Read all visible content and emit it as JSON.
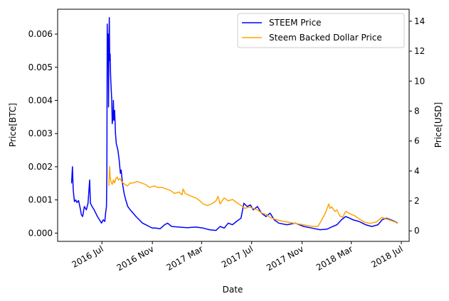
{
  "chart_data": {
    "type": "line",
    "title": "",
    "xlabel": "Date",
    "ylabel_left": "Price[BTC]",
    "ylabel_right": "Price[USD]",
    "x_ticks": [
      "2016 Jul",
      "2016 Nov",
      "2017 Mar",
      "2017 Jul",
      "2017 Nov",
      "2018 Mar",
      "2018 Jul"
    ],
    "y_left_ticks": [
      "0.000",
      "0.001",
      "0.002",
      "0.003",
      "0.004",
      "0.005",
      "0.006"
    ],
    "y_right_ticks": [
      "0",
      "2",
      "4",
      "6",
      "8",
      "10",
      "12",
      "14"
    ],
    "ylim_left": [
      -0.00025,
      0.00675
    ],
    "ylim_right": [
      -0.7,
      14.8
    ],
    "xlim": [
      "2016-03-15",
      "2018-07-20"
    ],
    "legend_position": "upper right",
    "grid": false,
    "series": [
      {
        "name": "STEEM Price",
        "axis": "left",
        "color": "#0000ff",
        "points": [
          [
            "2016-04-18",
            0.0015
          ],
          [
            "2016-04-20",
            0.002
          ],
          [
            "2016-04-22",
            0.0013
          ],
          [
            "2016-04-25",
            0.00095
          ],
          [
            "2016-04-28",
            0.001
          ],
          [
            "2016-05-01",
            0.00092
          ],
          [
            "2016-05-05",
            0.00098
          ],
          [
            "2016-05-09",
            0.00075
          ],
          [
            "2016-05-12",
            0.00055
          ],
          [
            "2016-05-15",
            0.0005
          ],
          [
            "2016-05-19",
            0.0008
          ],
          [
            "2016-05-24",
            0.0007
          ],
          [
            "2016-05-28",
            0.0009
          ],
          [
            "2016-06-01",
            0.0016
          ],
          [
            "2016-06-03",
            0.0009
          ],
          [
            "2016-06-07",
            0.0008
          ],
          [
            "2016-06-12",
            0.0007
          ],
          [
            "2016-06-16",
            0.0006
          ],
          [
            "2016-06-20",
            0.0005
          ],
          [
            "2016-06-25",
            0.0004
          ],
          [
            "2016-06-30",
            0.0003
          ],
          [
            "2016-07-04",
            0.0004
          ],
          [
            "2016-07-08",
            0.00035
          ],
          [
            "2016-07-10",
            0.0006
          ],
          [
            "2016-07-12",
            0.0008
          ],
          [
            "2016-07-13",
            0.0018
          ],
          [
            "2016-07-14",
            0.0063
          ],
          [
            "2016-07-15",
            0.0051
          ],
          [
            "2016-07-16",
            0.006
          ],
          [
            "2016-07-17",
            0.0038
          ],
          [
            "2016-07-18",
            0.0055
          ],
          [
            "2016-07-19",
            0.0065
          ],
          [
            "2016-07-20",
            0.0052
          ],
          [
            "2016-07-21",
            0.0054
          ],
          [
            "2016-07-22",
            0.0048
          ],
          [
            "2016-07-23",
            0.0045
          ],
          [
            "2016-07-25",
            0.004
          ],
          [
            "2016-07-26",
            0.0033
          ],
          [
            "2016-07-28",
            0.0035
          ],
          [
            "2016-07-29",
            0.004
          ],
          [
            "2016-07-30",
            0.0034
          ],
          [
            "2016-08-01",
            0.0037
          ],
          [
            "2016-08-03",
            0.003
          ],
          [
            "2016-08-05",
            0.0027
          ],
          [
            "2016-08-07",
            0.0026
          ],
          [
            "2016-08-09",
            0.0025
          ],
          [
            "2016-08-12",
            0.0022
          ],
          [
            "2016-08-15",
            0.0018
          ],
          [
            "2016-08-17",
            0.0019
          ],
          [
            "2016-08-20",
            0.0015
          ],
          [
            "2016-08-24",
            0.0012
          ],
          [
            "2016-08-28",
            0.001
          ],
          [
            "2016-09-02",
            0.0008
          ],
          [
            "2016-09-08",
            0.0007
          ],
          [
            "2016-09-15",
            0.0006
          ],
          [
            "2016-09-22",
            0.0005
          ],
          [
            "2016-09-30",
            0.0004
          ],
          [
            "2016-10-08",
            0.0003
          ],
          [
            "2016-10-16",
            0.00025
          ],
          [
            "2016-10-24",
            0.0002
          ],
          [
            "2016-11-01",
            0.00015
          ],
          [
            "2016-11-10",
            0.00015
          ],
          [
            "2016-11-20",
            0.00013
          ],
          [
            "2016-12-01",
            0.00025
          ],
          [
            "2016-12-08",
            0.0003
          ],
          [
            "2016-12-18",
            0.0002
          ],
          [
            "2017-01-05",
            0.00018
          ],
          [
            "2017-01-25",
            0.00016
          ],
          [
            "2017-02-15",
            0.00018
          ],
          [
            "2017-03-05",
            0.00015
          ],
          [
            "2017-03-20",
            0.0001
          ],
          [
            "2017-04-05",
            8e-05
          ],
          [
            "2017-04-15",
            0.0002
          ],
          [
            "2017-04-25",
            0.00015
          ],
          [
            "2017-05-05",
            0.0003
          ],
          [
            "2017-05-15",
            0.00025
          ],
          [
            "2017-05-25",
            0.00035
          ],
          [
            "2017-06-05",
            0.00045
          ],
          [
            "2017-06-12",
            0.0009
          ],
          [
            "2017-06-20",
            0.0008
          ],
          [
            "2017-06-28",
            0.00085
          ],
          [
            "2017-07-05",
            0.0007
          ],
          [
            "2017-07-15",
            0.0008
          ],
          [
            "2017-07-25",
            0.0006
          ],
          [
            "2017-08-05",
            0.0005
          ],
          [
            "2017-08-15",
            0.0006
          ],
          [
            "2017-08-25",
            0.0004
          ],
          [
            "2017-09-05",
            0.0003
          ],
          [
            "2017-09-25",
            0.00025
          ],
          [
            "2017-10-15",
            0.0003
          ],
          [
            "2017-11-05",
            0.0002
          ],
          [
            "2017-11-25",
            0.00015
          ],
          [
            "2017-12-15",
            0.0001
          ],
          [
            "2018-01-01",
            0.00012
          ],
          [
            "2018-01-15",
            0.0002
          ],
          [
            "2018-01-25",
            0.00025
          ],
          [
            "2018-02-05",
            0.0004
          ],
          [
            "2018-02-15",
            0.0005
          ],
          [
            "2018-02-25",
            0.00045
          ],
          [
            "2018-03-05",
            0.0004
          ],
          [
            "2018-03-20",
            0.00035
          ],
          [
            "2018-04-05",
            0.00025
          ],
          [
            "2018-04-20",
            0.0002
          ],
          [
            "2018-05-05",
            0.00025
          ],
          [
            "2018-05-15",
            0.0004
          ],
          [
            "2018-05-25",
            0.00045
          ],
          [
            "2018-06-05",
            0.0004
          ],
          [
            "2018-06-15",
            0.00035
          ],
          [
            "2018-06-22",
            0.0003
          ]
        ]
      },
      {
        "name": "Steem Backed Dollar Price",
        "axis": "right",
        "color": "#ffa500",
        "points": [
          [
            "2016-07-18",
            3.0
          ],
          [
            "2016-07-19",
            3.8
          ],
          [
            "2016-07-20",
            4.3
          ],
          [
            "2016-07-21",
            3.6
          ],
          [
            "2016-07-23",
            3.3
          ],
          [
            "2016-07-26",
            3.1
          ],
          [
            "2016-07-29",
            3.4
          ],
          [
            "2016-08-01",
            3.2
          ],
          [
            "2016-08-04",
            3.5
          ],
          [
            "2016-08-07",
            3.6
          ],
          [
            "2016-08-10",
            3.4
          ],
          [
            "2016-08-14",
            3.5
          ],
          [
            "2016-08-18",
            3.3
          ],
          [
            "2016-08-22",
            3.2
          ],
          [
            "2016-08-26",
            3.1
          ],
          [
            "2016-09-01",
            3.0
          ],
          [
            "2016-09-08",
            3.2
          ],
          [
            "2016-09-15",
            3.2
          ],
          [
            "2016-09-25",
            3.3
          ],
          [
            "2016-10-05",
            3.2
          ],
          [
            "2016-10-15",
            3.1
          ],
          [
            "2016-10-25",
            2.9
          ],
          [
            "2016-11-05",
            3.0
          ],
          [
            "2016-11-15",
            2.9
          ],
          [
            "2016-11-25",
            2.9
          ],
          [
            "2016-12-05",
            2.8
          ],
          [
            "2016-12-15",
            2.7
          ],
          [
            "2016-12-25",
            2.5
          ],
          [
            "2017-01-05",
            2.6
          ],
          [
            "2017-01-12",
            2.4
          ],
          [
            "2017-01-15",
            2.8
          ],
          [
            "2017-01-20",
            2.5
          ],
          [
            "2017-01-28",
            2.4
          ],
          [
            "2017-02-05",
            2.3
          ],
          [
            "2017-02-15",
            2.2
          ],
          [
            "2017-02-25",
            2.0
          ],
          [
            "2017-03-05",
            1.8
          ],
          [
            "2017-03-15",
            1.7
          ],
          [
            "2017-03-25",
            1.8
          ],
          [
            "2017-04-05",
            2.0
          ],
          [
            "2017-04-10",
            2.3
          ],
          [
            "2017-04-15",
            1.8
          ],
          [
            "2017-04-25",
            2.2
          ],
          [
            "2017-05-05",
            2.0
          ],
          [
            "2017-05-15",
            2.1
          ],
          [
            "2017-05-25",
            1.9
          ],
          [
            "2017-06-05",
            1.7
          ],
          [
            "2017-06-15",
            1.5
          ],
          [
            "2017-06-25",
            1.6
          ],
          [
            "2017-07-05",
            1.5
          ],
          [
            "2017-07-15",
            1.4
          ],
          [
            "2017-07-25",
            1.2
          ],
          [
            "2017-08-05",
            1.1
          ],
          [
            "2017-08-15",
            0.9
          ],
          [
            "2017-08-25",
            0.8
          ],
          [
            "2017-09-05",
            0.7
          ],
          [
            "2017-09-25",
            0.6
          ],
          [
            "2017-10-15",
            0.5
          ],
          [
            "2017-11-05",
            0.4
          ],
          [
            "2017-11-25",
            0.3
          ],
          [
            "2017-12-10",
            0.3
          ],
          [
            "2017-12-20",
            0.8
          ],
          [
            "2017-12-28",
            1.2
          ],
          [
            "2018-01-05",
            1.8
          ],
          [
            "2018-01-08",
            1.5
          ],
          [
            "2018-01-12",
            1.6
          ],
          [
            "2018-01-20",
            1.3
          ],
          [
            "2018-01-25",
            1.4
          ],
          [
            "2018-02-01",
            1.0
          ],
          [
            "2018-02-08",
            0.9
          ],
          [
            "2018-02-15",
            1.3
          ],
          [
            "2018-02-22",
            1.2
          ],
          [
            "2018-03-01",
            1.1
          ],
          [
            "2018-03-10",
            1.0
          ],
          [
            "2018-03-20",
            0.8
          ],
          [
            "2018-04-01",
            0.6
          ],
          [
            "2018-04-15",
            0.5
          ],
          [
            "2018-05-01",
            0.6
          ],
          [
            "2018-05-15",
            0.9
          ],
          [
            "2018-05-25",
            0.8
          ],
          [
            "2018-06-05",
            0.7
          ],
          [
            "2018-06-15",
            0.6
          ],
          [
            "2018-06-22",
            0.5
          ]
        ]
      }
    ]
  }
}
